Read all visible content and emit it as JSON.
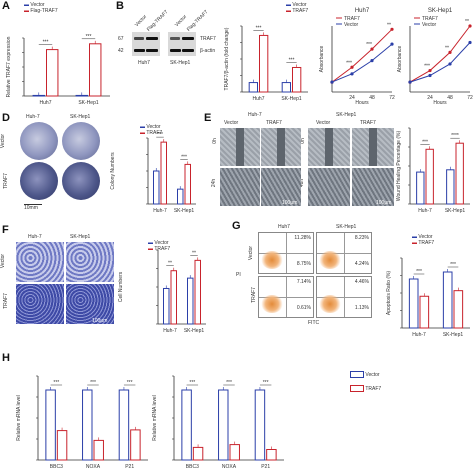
{
  "panel_letters": {
    "a": "A",
    "b": "B",
    "d": "D",
    "e": "E",
    "f": "F",
    "g": "G",
    "h": "H"
  },
  "panelA": {
    "legend": [
      "Vector",
      "Flag-TRAF7"
    ],
    "ylabel": "Relative TRAF7 expression",
    "sig": [
      "***",
      "***"
    ],
    "chart_data": {
      "type": "bar",
      "categories": [
        "Huh7",
        "SK-Hep1"
      ],
      "series": [
        {
          "name": "Vector",
          "values": [
            1,
            1
          ]
        },
        {
          "name": "Flag-TRAF7",
          "values": [
            80,
            90
          ]
        }
      ],
      "ylim": [
        0,
        100
      ]
    }
  },
  "panelB": {
    "blot_headers": [
      "Vector",
      "Flag-TRAF7",
      "Vector",
      "Flag-TRAF7"
    ],
    "blot_labels": [
      "TRAF7",
      "β-actin"
    ],
    "mw": [
      "67",
      "42"
    ],
    "cells": [
      "Huh7",
      "SK-Hep1"
    ],
    "legend": [
      "Vector",
      "TRAF7"
    ],
    "ylabel": "TRAF7/β-actin (fold change)",
    "sig": [
      "***",
      "***"
    ],
    "chart_data": {
      "type": "bar",
      "categories": [
        "Huh7",
        "SK-Hep1"
      ],
      "series": [
        {
          "name": "Vector",
          "values": [
            1,
            1
          ]
        },
        {
          "name": "TRAF7",
          "values": [
            6.0,
            2.6
          ]
        }
      ],
      "ylim": [
        0,
        7
      ]
    }
  },
  "panelC": {
    "charts": [
      {
        "title": "Huh7",
        "legend": [
          "TRAF7",
          "Vector"
        ],
        "xlabel": "Hours",
        "ylabel": "Absorbance",
        "sig": [
          "***",
          "***",
          "**"
        ],
        "chart_data": {
          "type": "line",
          "x": [
            0,
            24,
            48,
            72
          ],
          "series": [
            {
              "name": "TRAF7",
              "values": [
                0.3,
                0.75,
                1.3,
                1.9
              ]
            },
            {
              "name": "Vector",
              "values": [
                0.3,
                0.55,
                0.95,
                1.45
              ]
            }
          ],
          "ylim": [
            0,
            2.0
          ]
        }
      },
      {
        "title": "SK-Hep1",
        "legend": [
          "TRAF7",
          "Vector"
        ],
        "xlabel": "Hours",
        "ylabel": "Absorbance",
        "sig": [
          "***",
          "**",
          "**"
        ],
        "chart_data": {
          "type": "line",
          "x": [
            0,
            24,
            48,
            72
          ],
          "series": [
            {
              "name": "TRAF7",
              "values": [
                0.3,
                0.65,
                1.2,
                2.0
              ]
            },
            {
              "name": "Vector",
              "values": [
                0.3,
                0.5,
                0.85,
                1.5
              ]
            }
          ],
          "ylim": [
            0,
            2.0
          ]
        }
      }
    ]
  },
  "panelD": {
    "cells": [
      "Huh-7",
      "SK-Hep1"
    ],
    "rows": [
      "Vector",
      "TRAF7"
    ],
    "scale": "10mm",
    "legend": [
      "Vector",
      "TRAF7"
    ],
    "ylabel": "Colony Numbers",
    "sig": [
      "***",
      "***"
    ],
    "chart_data": {
      "type": "bar",
      "categories": [
        "Huh-7",
        "SK-Hep1"
      ],
      "series": [
        {
          "name": "Vector",
          "values": [
            40,
            18
          ]
        },
        {
          "name": "TRAF7",
          "values": [
            75,
            48
          ]
        }
      ],
      "ylim": [
        0,
        80
      ]
    }
  },
  "panelE": {
    "cells": [
      "Huh-7",
      "SK-Hep1"
    ],
    "cols": [
      "Vector",
      "TRAF7"
    ],
    "times_left": [
      "0h",
      "24h"
    ],
    "times_right": [
      "0h",
      "48h"
    ],
    "scale": "100μm",
    "legend": [
      "Vector",
      "TRAF7"
    ],
    "ylabel": "Wound Healing Percentage (%)",
    "sig": [
      "***",
      "****"
    ],
    "chart_data": {
      "type": "bar",
      "categories": [
        "Huh-7",
        "SK-Hep1"
      ],
      "series": [
        {
          "name": "Vector",
          "values": [
            42,
            45
          ]
        },
        {
          "name": "TRAF7",
          "values": [
            72,
            80
          ]
        }
      ],
      "ylim": [
        0,
        100
      ]
    }
  },
  "panelF": {
    "cells": [
      "Huh-7",
      "SK-Hep1"
    ],
    "rows": [
      "Vector",
      "TRAF7"
    ],
    "scale": "100μm",
    "legend": [
      "Vector",
      "TRAF7"
    ],
    "ylabel": "Cell Numbers",
    "sig": [
      "**",
      "**"
    ],
    "chart_data": {
      "type": "bar",
      "categories": [
        "Huh-7",
        "SK-Hep1"
      ],
      "series": [
        {
          "name": "Vector",
          "values": [
            480,
            620
          ]
        },
        {
          "name": "TRAF7",
          "values": [
            720,
            860
          ]
        }
      ],
      "ylim": [
        0,
        1000
      ]
    }
  },
  "panelG": {
    "cells": [
      "Huh7",
      "SK-Hep1"
    ],
    "rows": [
      "Vector",
      "TRAF7"
    ],
    "xlabel": "FITC",
    "ylabel": "PI",
    "quadrants": [
      [
        "11.28%",
        "8.75%",
        "8.23%",
        "4.24%"
      ],
      [
        "7.14%",
        "0.61%",
        "4.46%",
        "1.13%"
      ]
    ],
    "legend": [
      "Vector",
      "TRAF7"
    ],
    "ylabel_chart": "Apoptosis Ratio (%)",
    "sig": [
      "***",
      "***"
    ],
    "chart_data": {
      "type": "bar",
      "categories": [
        "Huh-7",
        "SK-Hep1"
      ],
      "series": [
        {
          "name": "Vector",
          "values": [
            10.5,
            12.0
          ]
        },
        {
          "name": "TRAF7",
          "values": [
            6.8,
            8.0
          ]
        }
      ],
      "ylim": [
        0,
        15
      ]
    }
  },
  "panelH": {
    "legend": [
      "Vector",
      "TRAF7"
    ],
    "ylabel": "Relative mRNA level",
    "charts": [
      {
        "sig": [
          "***",
          "***",
          "***"
        ],
        "chart_data": {
          "type": "bar",
          "categories": [
            "BBC3",
            "NOXA",
            "P21"
          ],
          "series": [
            {
              "name": "Vector",
              "values": [
                1.0,
                1.0,
                1.0
              ]
            },
            {
              "name": "TRAF7",
              "values": [
                0.42,
                0.28,
                0.43
              ]
            }
          ],
          "ylim": [
            0,
            1.2
          ]
        }
      },
      {
        "sig": [
          "***",
          "***",
          "***"
        ],
        "chart_data": {
          "type": "bar",
          "categories": [
            "BBC3",
            "NOXA",
            "P21"
          ],
          "series": [
            {
              "name": "Vector",
              "values": [
                1.0,
                1.0,
                1.0
              ]
            },
            {
              "name": "TRAF7",
              "values": [
                0.18,
                0.22,
                0.15
              ]
            }
          ],
          "ylim": [
            0,
            1.2
          ]
        }
      }
    ]
  },
  "colors": {
    "vector": "#2b3fa8",
    "traf7": "#c8232c"
  }
}
